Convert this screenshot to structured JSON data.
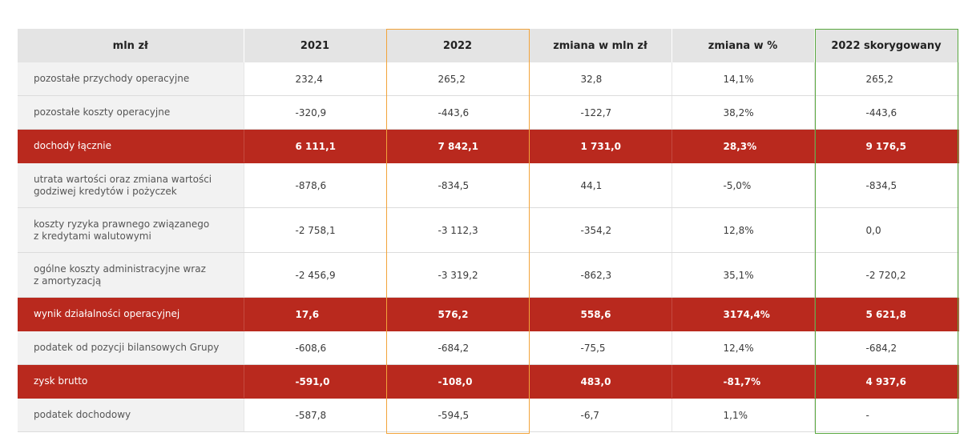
{
  "columns": [
    "mln zł",
    "2021",
    "2022",
    "zmiana w mln zł",
    "zmiana w %",
    "2022 skorygowany"
  ],
  "rows": [
    {
      "label": [
        "pozostałe przychody operacyjne"
      ],
      "values": [
        "232,4",
        "265,2",
        "32,8",
        "14,1%",
        "265,2"
      ],
      "highlight": false,
      "tall": false
    },
    {
      "label": [
        "pozostałe koszty operacyjne"
      ],
      "values": [
        "-320,9",
        "-443,6",
        "-122,7",
        "38,2%",
        "-443,6"
      ],
      "highlight": false,
      "tall": false
    },
    {
      "label": [
        "dochody łącznie"
      ],
      "values": [
        "6 111,1",
        "7 842,1",
        "1 731,0",
        "28,3%",
        "9 176,5"
      ],
      "highlight": true,
      "tall": false
    },
    {
      "label": [
        "utrata wartości oraz zmiana wartości",
        "godziwej kredytów i pożyczek"
      ],
      "values": [
        "-878,6",
        "-834,5",
        "44,1",
        "-5,0%",
        "-834,5"
      ],
      "highlight": false,
      "tall": true
    },
    {
      "label": [
        "koszty ryzyka prawnego związanego",
        "z kredytami walutowymi"
      ],
      "values": [
        "-2 758,1",
        "-3 112,3",
        "-354,2",
        "12,8%",
        "0,0"
      ],
      "highlight": false,
      "tall": true
    },
    {
      "label": [
        "ogólne koszty administracyjne wraz",
        "z amortyzacją"
      ],
      "values": [
        "-2 456,9",
        "-3 319,2",
        "-862,3",
        "35,1%",
        "-2 720,2"
      ],
      "highlight": false,
      "tall": true
    },
    {
      "label": [
        "wynik działalności operacyjnej"
      ],
      "values": [
        "17,6",
        "576,2",
        "558,6",
        "3174,4%",
        "5 621,8"
      ],
      "highlight": true,
      "tall": false
    },
    {
      "label": [
        "podatek od pozycji bilansowych Grupy"
      ],
      "values": [
        "-608,6",
        "-684,2",
        "-75,5",
        "12,4%",
        "-684,2"
      ],
      "highlight": false,
      "tall": false
    },
    {
      "label": [
        "zysk brutto"
      ],
      "values": [
        "-591,0",
        "-108,0",
        "483,0",
        "-81,7%",
        "4 937,6"
      ],
      "highlight": true,
      "tall": false
    },
    {
      "label": [
        "podatek dochodowy"
      ],
      "values": [
        "-587,8",
        "-594,5",
        "-6,7",
        "1,1%",
        "-"
      ],
      "highlight": false,
      "tall": false
    }
  ],
  "colors": {
    "highlight_row": "#b9291e",
    "frame_2022": "#f2a33a",
    "frame_adjusted": "#5aa840",
    "header_bg": "#e4e4e4",
    "label_bg": "#f2f2f2"
  }
}
